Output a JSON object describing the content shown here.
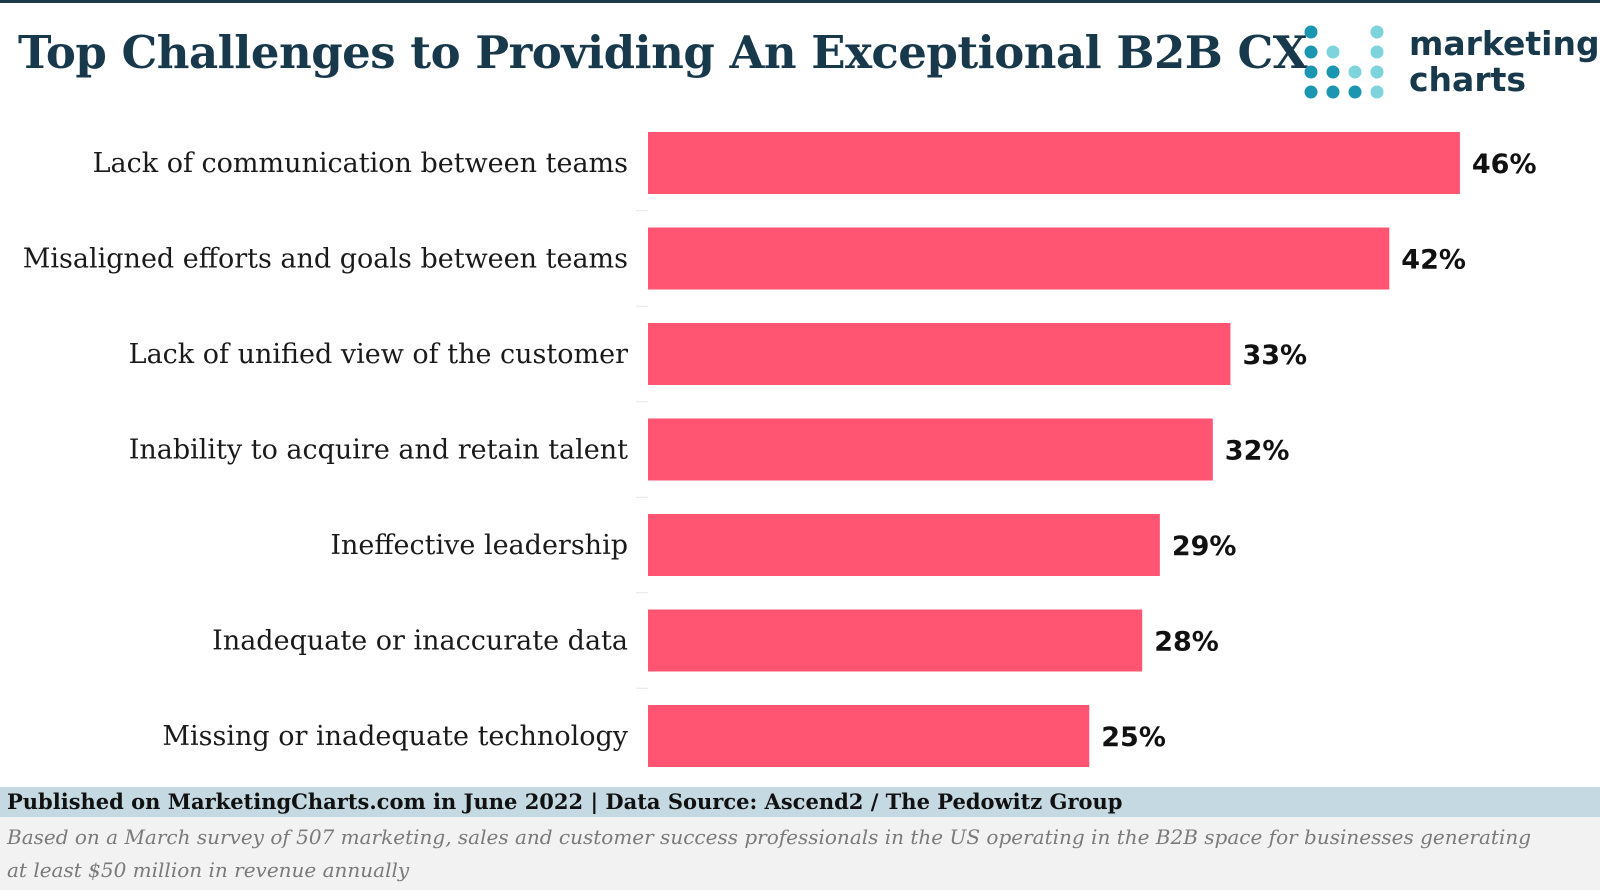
{
  "title": "Top Challenges to Providing An Exceptional B2B CX",
  "logo": {
    "line1": "marketing",
    "line2": "charts",
    "dot_color_dark": "#1a96b0",
    "dot_color_light": "#7fd3dc"
  },
  "footer": {
    "published": "Published on MarketingCharts.com in June 2022 | Data Source: Ascend2 / The Pedowitz Group",
    "note": "Based on a March survey of 507 marketing, sales and customer success professionals in the US operating in the B2B space for businesses generating at least $50 million in revenue annually"
  },
  "colors": {
    "bar": "#ff5572",
    "title": "#17394b",
    "footer_band": "#c5d9e2"
  },
  "chart_data": {
    "type": "bar",
    "orientation": "horizontal",
    "categories": [
      "Lack of communication between teams",
      "Misaligned efforts and goals between teams",
      "Lack of unified view of the customer",
      "Inability to acquire and retain talent",
      "Ineffective leadership",
      "Inadequate or inaccurate data",
      "Missing or inadequate technology"
    ],
    "values": [
      46,
      42,
      33,
      32,
      29,
      28,
      25
    ],
    "value_labels": [
      "46%",
      "42%",
      "33%",
      "32%",
      "29%",
      "28%",
      "25%"
    ],
    "unit": "%",
    "xlim": [
      0,
      50
    ],
    "grid": false,
    "legend": "none"
  }
}
